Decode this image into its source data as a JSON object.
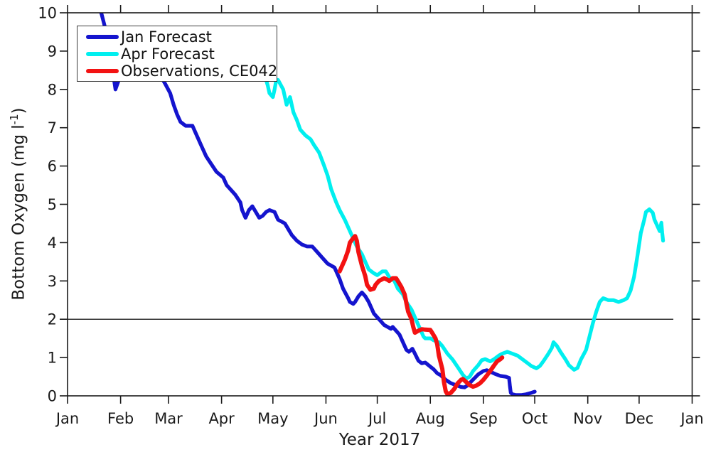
{
  "figure": {
    "background": "#ffffff",
    "axis_color": "#1a1a1a",
    "text_color": "#1a1a1a"
  },
  "chart_data": {
    "type": "line",
    "title": "",
    "xlabel": "Year 2017",
    "ylabel": "Bottom Oxygen (mg l⁻¹)",
    "ylabel_parts": {
      "prefix": "Bottom Oxygen (mg l",
      "superscript": "-1",
      "suffix": ")"
    },
    "x_unit": "day_of_year_2017",
    "xlim_days": [
      0,
      365
    ],
    "ylim": [
      0,
      10
    ],
    "grid": false,
    "box": true,
    "tick_direction": "out",
    "x_ticks": [
      {
        "label": "Jan",
        "day": 0
      },
      {
        "label": "Feb",
        "day": 31
      },
      {
        "label": "Mar",
        "day": 59
      },
      {
        "label": "Apr",
        "day": 90
      },
      {
        "label": "May",
        "day": 120
      },
      {
        "label": "Jun",
        "day": 151
      },
      {
        "label": "Jul",
        "day": 181
      },
      {
        "label": "Aug",
        "day": 212
      },
      {
        "label": "Sep",
        "day": 243
      },
      {
        "label": "Oct",
        "day": 273
      },
      {
        "label": "Nov",
        "day": 304
      },
      {
        "label": "Dec",
        "day": 334
      },
      {
        "label": "Jan",
        "day": 365
      }
    ],
    "y_ticks": [
      0,
      1,
      2,
      3,
      4,
      5,
      6,
      7,
      8,
      9,
      10
    ],
    "reference_line": {
      "y": 2,
      "x_start_day": 0,
      "x_end_day": 354,
      "color": "#333333"
    },
    "legend": {
      "position": "top-left",
      "entries": [
        {
          "label": "Jan Forecast",
          "color": "#1414CE"
        },
        {
          "label": "Apr Forecast",
          "color": "#00EFEF"
        },
        {
          "label": "Observations, CE042",
          "color": "#F31212"
        }
      ]
    },
    "series": [
      {
        "id": "jan-forecast",
        "name": "Jan Forecast",
        "color": "#1414CE",
        "points": [
          [
            19,
            10.1
          ],
          [
            20,
            9.95
          ],
          [
            22,
            9.6
          ],
          [
            24,
            9.1
          ],
          [
            26,
            8.6
          ],
          [
            27,
            8.3
          ],
          [
            28,
            8.0
          ],
          [
            30,
            8.25
          ],
          [
            33,
            8.5
          ],
          [
            38,
            8.6
          ],
          [
            44,
            8.55
          ],
          [
            50,
            8.45
          ],
          [
            55,
            8.3
          ],
          [
            57,
            8.15
          ],
          [
            60,
            7.9
          ],
          [
            62,
            7.6
          ],
          [
            64,
            7.35
          ],
          [
            66,
            7.15
          ],
          [
            69,
            7.05
          ],
          [
            73,
            7.05
          ],
          [
            75,
            6.85
          ],
          [
            78,
            6.55
          ],
          [
            81,
            6.25
          ],
          [
            84,
            6.05
          ],
          [
            87,
            5.85
          ],
          [
            91,
            5.7
          ],
          [
            93,
            5.5
          ],
          [
            96,
            5.35
          ],
          [
            98,
            5.25
          ],
          [
            101,
            5.05
          ],
          [
            102,
            4.85
          ],
          [
            104,
            4.65
          ],
          [
            106,
            4.85
          ],
          [
            108,
            4.95
          ],
          [
            110,
            4.8
          ],
          [
            112,
            4.65
          ],
          [
            114,
            4.7
          ],
          [
            116,
            4.8
          ],
          [
            118,
            4.85
          ],
          [
            121,
            4.8
          ],
          [
            123,
            4.6
          ],
          [
            127,
            4.5
          ],
          [
            129,
            4.35
          ],
          [
            131,
            4.2
          ],
          [
            134,
            4.05
          ],
          [
            137,
            3.95
          ],
          [
            140,
            3.9
          ],
          [
            143,
            3.9
          ],
          [
            146,
            3.75
          ],
          [
            149,
            3.6
          ],
          [
            152,
            3.45
          ],
          [
            154,
            3.4
          ],
          [
            156,
            3.35
          ],
          [
            159,
            3.05
          ],
          [
            161,
            2.8
          ],
          [
            164,
            2.55
          ],
          [
            165,
            2.45
          ],
          [
            167,
            2.4
          ],
          [
            168,
            2.45
          ],
          [
            170,
            2.6
          ],
          [
            172,
            2.7
          ],
          [
            174,
            2.6
          ],
          [
            176,
            2.45
          ],
          [
            179,
            2.15
          ],
          [
            181,
            2.05
          ],
          [
            183,
            1.95
          ],
          [
            185,
            1.85
          ],
          [
            187,
            1.8
          ],
          [
            189,
            1.75
          ],
          [
            190,
            1.8
          ],
          [
            192,
            1.7
          ],
          [
            194,
            1.6
          ],
          [
            196,
            1.4
          ],
          [
            198,
            1.2
          ],
          [
            199.5,
            1.15
          ],
          [
            201.5,
            1.23
          ],
          [
            203,
            1.1
          ],
          [
            205,
            0.92
          ],
          [
            207,
            0.85
          ],
          [
            209,
            0.87
          ],
          [
            211,
            0.8
          ],
          [
            214,
            0.69
          ],
          [
            216,
            0.59
          ],
          [
            218,
            0.54
          ],
          [
            221,
            0.42
          ],
          [
            224,
            0.33
          ],
          [
            227,
            0.28
          ],
          [
            230,
            0.23
          ],
          [
            232,
            0.22
          ],
          [
            234,
            0.28
          ],
          [
            236,
            0.38
          ],
          [
            238,
            0.47
          ],
          [
            240,
            0.56
          ],
          [
            243,
            0.65
          ],
          [
            245,
            0.67
          ],
          [
            247,
            0.63
          ],
          [
            250,
            0.57
          ],
          [
            253,
            0.52
          ],
          [
            256,
            0.5
          ],
          [
            258,
            0.47
          ],
          [
            258.5,
            0.25
          ],
          [
            259,
            0.08
          ],
          [
            260,
            0.04
          ],
          [
            262,
            0.02
          ],
          [
            265,
            0.02
          ],
          [
            268,
            0.04
          ],
          [
            271,
            0.08
          ],
          [
            273,
            0.11
          ]
        ]
      },
      {
        "id": "apr-forecast",
        "name": "Apr Forecast",
        "color": "#00EFEF",
        "points": [
          [
            114,
            8.6
          ],
          [
            116,
            8.25
          ],
          [
            117,
            8.1
          ],
          [
            118,
            7.9
          ],
          [
            120,
            7.8
          ],
          [
            121,
            8.0
          ],
          [
            122,
            8.25
          ],
          [
            123,
            8.25
          ],
          [
            126,
            8.0
          ],
          [
            127,
            7.8
          ],
          [
            128,
            7.6
          ],
          [
            130,
            7.8
          ],
          [
            131,
            7.6
          ],
          [
            132,
            7.4
          ],
          [
            134,
            7.2
          ],
          [
            136,
            6.95
          ],
          [
            139,
            6.8
          ],
          [
            142,
            6.7
          ],
          [
            144,
            6.55
          ],
          [
            147,
            6.35
          ],
          [
            150,
            6.0
          ],
          [
            152,
            5.75
          ],
          [
            154,
            5.4
          ],
          [
            157,
            5.05
          ],
          [
            159,
            4.85
          ],
          [
            162,
            4.6
          ],
          [
            164,
            4.4
          ],
          [
            167,
            4.1
          ],
          [
            169,
            3.9
          ],
          [
            172,
            3.7
          ],
          [
            174,
            3.5
          ],
          [
            176,
            3.3
          ],
          [
            179,
            3.2
          ],
          [
            181,
            3.15
          ],
          [
            184,
            3.25
          ],
          [
            186,
            3.25
          ],
          [
            188,
            3.1
          ],
          [
            191,
            3.0
          ],
          [
            193,
            2.8
          ],
          [
            196,
            2.65
          ],
          [
            198,
            2.45
          ],
          [
            201,
            2.25
          ],
          [
            203,
            2.05
          ],
          [
            206,
            1.75
          ],
          [
            208,
            1.55
          ],
          [
            209,
            1.5
          ],
          [
            212,
            1.5
          ],
          [
            214,
            1.45
          ],
          [
            217,
            1.4
          ],
          [
            219,
            1.3
          ],
          [
            222,
            1.1
          ],
          [
            225,
            0.95
          ],
          [
            228,
            0.75
          ],
          [
            231,
            0.55
          ],
          [
            233,
            0.45
          ],
          [
            235,
            0.5
          ],
          [
            237,
            0.65
          ],
          [
            240,
            0.8
          ],
          [
            242,
            0.93
          ],
          [
            244,
            0.96
          ],
          [
            247,
            0.9
          ],
          [
            249,
            0.95
          ],
          [
            252,
            1.05
          ],
          [
            254,
            1.1
          ],
          [
            257,
            1.15
          ],
          [
            260,
            1.1
          ],
          [
            263,
            1.05
          ],
          [
            266,
            0.95
          ],
          [
            269,
            0.85
          ],
          [
            271,
            0.78
          ],
          [
            274,
            0.72
          ],
          [
            276,
            0.78
          ],
          [
            278,
            0.9
          ],
          [
            281,
            1.1
          ],
          [
            283,
            1.25
          ],
          [
            284,
            1.4
          ],
          [
            286,
            1.3
          ],
          [
            288,
            1.15
          ],
          [
            291,
            0.95
          ],
          [
            293,
            0.8
          ],
          [
            296,
            0.68
          ],
          [
            298,
            0.73
          ],
          [
            300,
            0.95
          ],
          [
            303,
            1.2
          ],
          [
            305,
            1.55
          ],
          [
            307,
            1.9
          ],
          [
            309,
            2.2
          ],
          [
            311,
            2.45
          ],
          [
            313,
            2.55
          ],
          [
            316,
            2.5
          ],
          [
            319,
            2.5
          ],
          [
            322,
            2.45
          ],
          [
            325,
            2.5
          ],
          [
            327,
            2.55
          ],
          [
            329,
            2.75
          ],
          [
            331,
            3.1
          ],
          [
            333,
            3.65
          ],
          [
            335,
            4.25
          ],
          [
            337,
            4.6
          ],
          [
            338,
            4.8
          ],
          [
            340,
            4.87
          ],
          [
            342,
            4.78
          ],
          [
            343,
            4.6
          ],
          [
            345,
            4.4
          ],
          [
            346,
            4.3
          ],
          [
            347,
            4.52
          ],
          [
            347.5,
            4.25
          ],
          [
            348,
            4.05
          ]
        ]
      },
      {
        "id": "observations-ce042",
        "name": "Observations, CE042",
        "color": "#F31212",
        "points": [
          [
            159,
            3.25
          ],
          [
            160,
            3.35
          ],
          [
            162,
            3.55
          ],
          [
            164,
            3.8
          ],
          [
            165,
            4.0
          ],
          [
            167,
            4.12
          ],
          [
            168,
            4.17
          ],
          [
            169,
            4.05
          ],
          [
            170,
            3.75
          ],
          [
            172,
            3.4
          ],
          [
            174,
            3.12
          ],
          [
            175,
            2.9
          ],
          [
            177,
            2.77
          ],
          [
            179,
            2.8
          ],
          [
            180,
            2.9
          ],
          [
            182,
            3.0
          ],
          [
            185,
            3.07
          ],
          [
            187,
            3.03
          ],
          [
            188,
            3.0
          ],
          [
            190,
            3.07
          ],
          [
            192,
            3.07
          ],
          [
            193,
            3.0
          ],
          [
            195,
            2.85
          ],
          [
            197,
            2.65
          ],
          [
            198,
            2.42
          ],
          [
            199,
            2.2
          ],
          [
            201,
            2.0
          ],
          [
            202,
            1.8
          ],
          [
            203,
            1.65
          ],
          [
            205,
            1.7
          ],
          [
            207,
            1.74
          ],
          [
            209,
            1.73
          ],
          [
            212,
            1.72
          ],
          [
            213,
            1.65
          ],
          [
            215,
            1.5
          ],
          [
            216,
            1.35
          ],
          [
            217,
            1.05
          ],
          [
            219,
            0.7
          ],
          [
            220,
            0.35
          ],
          [
            221,
            0.12
          ],
          [
            222,
            0.04
          ],
          [
            224,
            0.08
          ],
          [
            226,
            0.18
          ],
          [
            228,
            0.33
          ],
          [
            230,
            0.42
          ],
          [
            231,
            0.44
          ],
          [
            233,
            0.36
          ],
          [
            235,
            0.28
          ],
          [
            237,
            0.24
          ],
          [
            239,
            0.27
          ],
          [
            241,
            0.33
          ],
          [
            243,
            0.42
          ],
          [
            245,
            0.53
          ],
          [
            247,
            0.65
          ],
          [
            249,
            0.78
          ],
          [
            251,
            0.9
          ],
          [
            253,
            0.96
          ],
          [
            254,
            1.0
          ]
        ]
      }
    ]
  }
}
